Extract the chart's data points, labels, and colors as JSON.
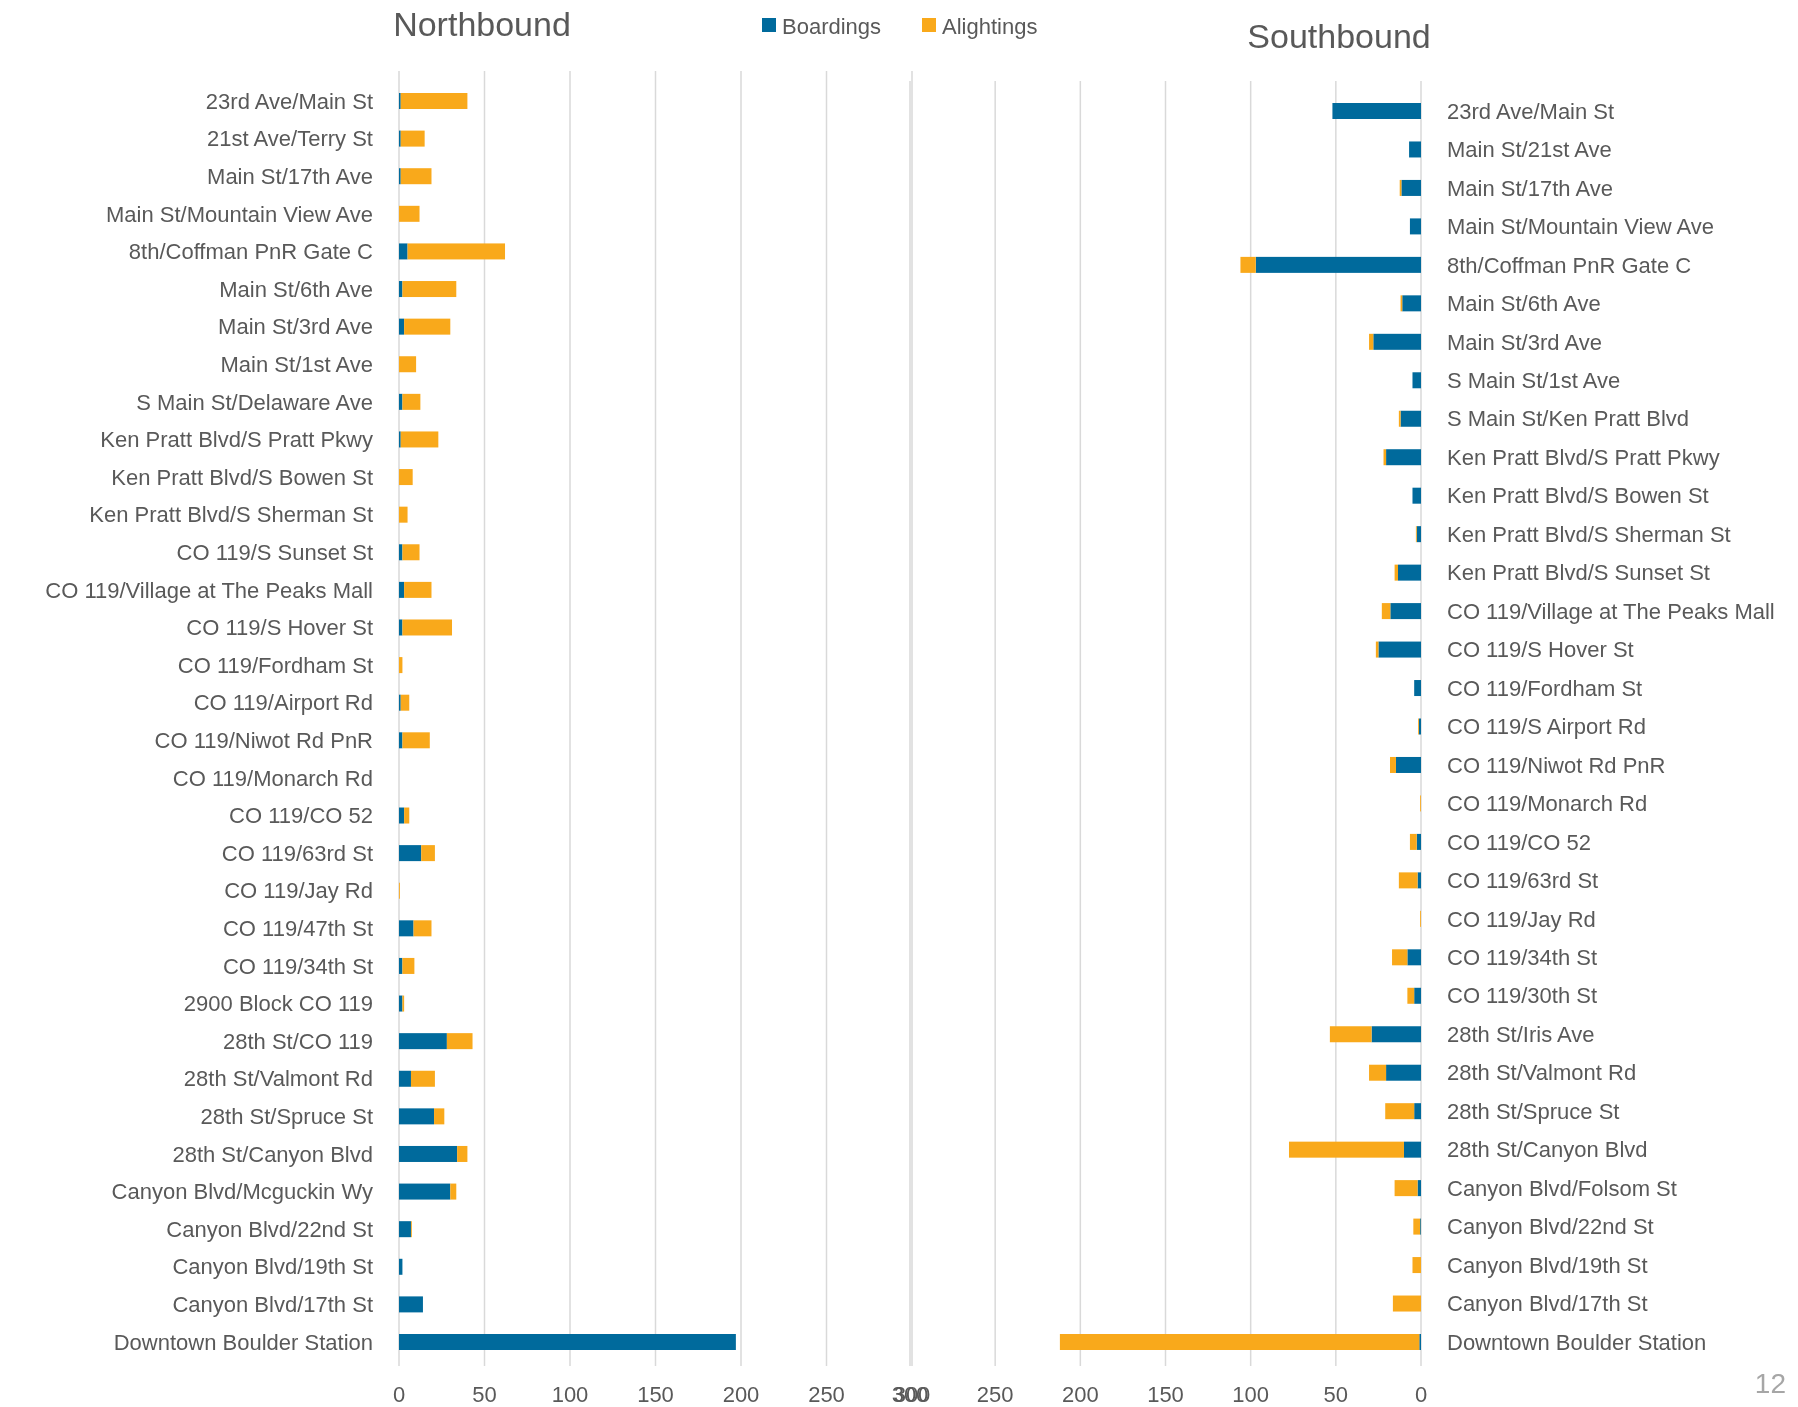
{
  "chart_data": [
    {
      "type": "bar",
      "title": "Northbound",
      "orientation": "horizontal",
      "stacked": true,
      "grid": "x",
      "legend": "top right",
      "categories": [
        "23rd Ave/Main St",
        "21st Ave/Terry St",
        "Main St/17th Ave",
        "Main St/Mountain View Ave",
        "8th/Coffman PnR Gate C",
        "Main St/6th Ave",
        "Main St/3rd Ave",
        "Main St/1st Ave",
        "S Main St/Delaware Ave",
        "Ken Pratt Blvd/S Pratt Pkwy",
        "Ken Pratt Blvd/S Bowen St",
        "Ken Pratt Blvd/S Sherman St",
        "CO 119/S Sunset St",
        "CO 119/Village at The Peaks Mall",
        "CO 119/S Hover St",
        "CO 119/Fordham St",
        "CO 119/Airport Rd",
        "CO 119/Niwot Rd PnR",
        "CO 119/Monarch Rd",
        "CO 119/CO 52",
        "CO 119/63rd St",
        "CO 119/Jay Rd",
        "CO 119/47th St",
        "CO 119/34th St",
        "2900 Block CO 119",
        "28th St/CO 119",
        "28th St/Valmont Rd",
        "28th St/Spruce St",
        "28th St/Canyon Blvd",
        "Canyon Blvd/Mcguckin Wy",
        "Canyon Blvd/22nd St",
        "Canyon Blvd/19th St",
        "Canyon Blvd/17th St",
        "Downtown Boulder Station"
      ],
      "series": [
        {
          "name": "Boardings",
          "color": "#006a9c",
          "values": [
            1,
            1,
            1,
            0,
            5,
            2,
            3,
            0,
            2,
            1,
            0,
            0,
            2,
            3,
            2,
            0,
            1,
            2,
            0,
            3,
            13,
            0,
            8.5,
            2,
            2,
            28,
            7,
            20.5,
            34,
            30,
            7,
            2,
            14,
            197
          ]
        },
        {
          "name": "Alightings",
          "color": "#f9a91b",
          "values": [
            39,
            14,
            18,
            12,
            57,
            31.5,
            27,
            10,
            10.5,
            22,
            8,
            5,
            10,
            16,
            29,
            2,
            5,
            16,
            0,
            3,
            8,
            0.5,
            10.5,
            7,
            1,
            15,
            14,
            6,
            6,
            3.5,
            0.5,
            0,
            0,
            0
          ]
        }
      ],
      "xlim": [
        0,
        300
      ],
      "xticks": [
        0,
        50,
        100,
        150,
        200,
        250,
        300
      ]
    },
    {
      "type": "bar",
      "title": "Southbound",
      "orientation": "horizontal",
      "stacked": true,
      "grid": "x",
      "categories": [
        "23rd Ave/Main St",
        "Main St/21st Ave",
        "Main St/17th Ave",
        "Main St/Mountain View Ave",
        "8th/Coffman PnR Gate C",
        "Main St/6th Ave",
        "Main St/3rd Ave",
        "S Main St/1st Ave",
        "S Main St/Ken Pratt Blvd",
        "Ken Pratt Blvd/S Pratt Pkwy",
        "Ken Pratt Blvd/S Bowen St",
        "Ken Pratt Blvd/S Sherman St",
        "Ken Pratt Blvd/S Sunset St",
        "CO 119/Village at The Peaks Mall",
        "CO 119/S Hover St",
        "CO 119/Fordham St",
        "CO 119/S Airport Rd",
        "CO 119/Niwot Rd PnR",
        "CO 119/Monarch Rd",
        "CO 119/CO 52",
        "CO 119/63rd St",
        "CO 119/Jay Rd",
        "CO 119/34th St",
        "CO 119/30th St",
        "28th St/Iris Ave",
        "28th St/Valmont Rd",
        "28th St/Spruce St",
        "28th St/Canyon Blvd",
        "Canyon Blvd/Folsom St",
        "Canyon Blvd/22nd St",
        "Canyon Blvd/19th St",
        "Canyon Blvd/17th St",
        "Downtown Boulder Station"
      ],
      "series": [
        {
          "color": "#006a9c",
          "values": [
            52,
            7,
            11.5,
            6.5,
            97,
            11,
            28,
            5,
            12,
            20.5,
            5,
            2.5,
            13.5,
            18,
            25,
            4,
            1.2,
            14.7,
            0,
            2.5,
            2,
            0,
            8,
            4,
            29,
            20.5,
            4,
            10,
            2,
            0.5,
            0,
            0,
            1
          ]
        },
        {
          "color": "#f9a91b",
          "values": [
            0,
            0,
            1,
            0,
            9,
            1,
            2.5,
            0,
            1,
            1.5,
            null,
            0.5,
            2,
            5,
            1.5,
            0,
            0.5,
            3.5,
            0.5,
            4,
            11,
            0.5,
            9,
            4,
            24.5,
            10,
            17,
            67.5,
            13.5,
            4,
            5,
            16.5,
            211
          ]
        }
      ],
      "xlim": [
        300,
        0
      ],
      "xticks": [
        300,
        250,
        200,
        150,
        100,
        50,
        0
      ],
      "annotations": [
        "12"
      ]
    }
  ]
}
